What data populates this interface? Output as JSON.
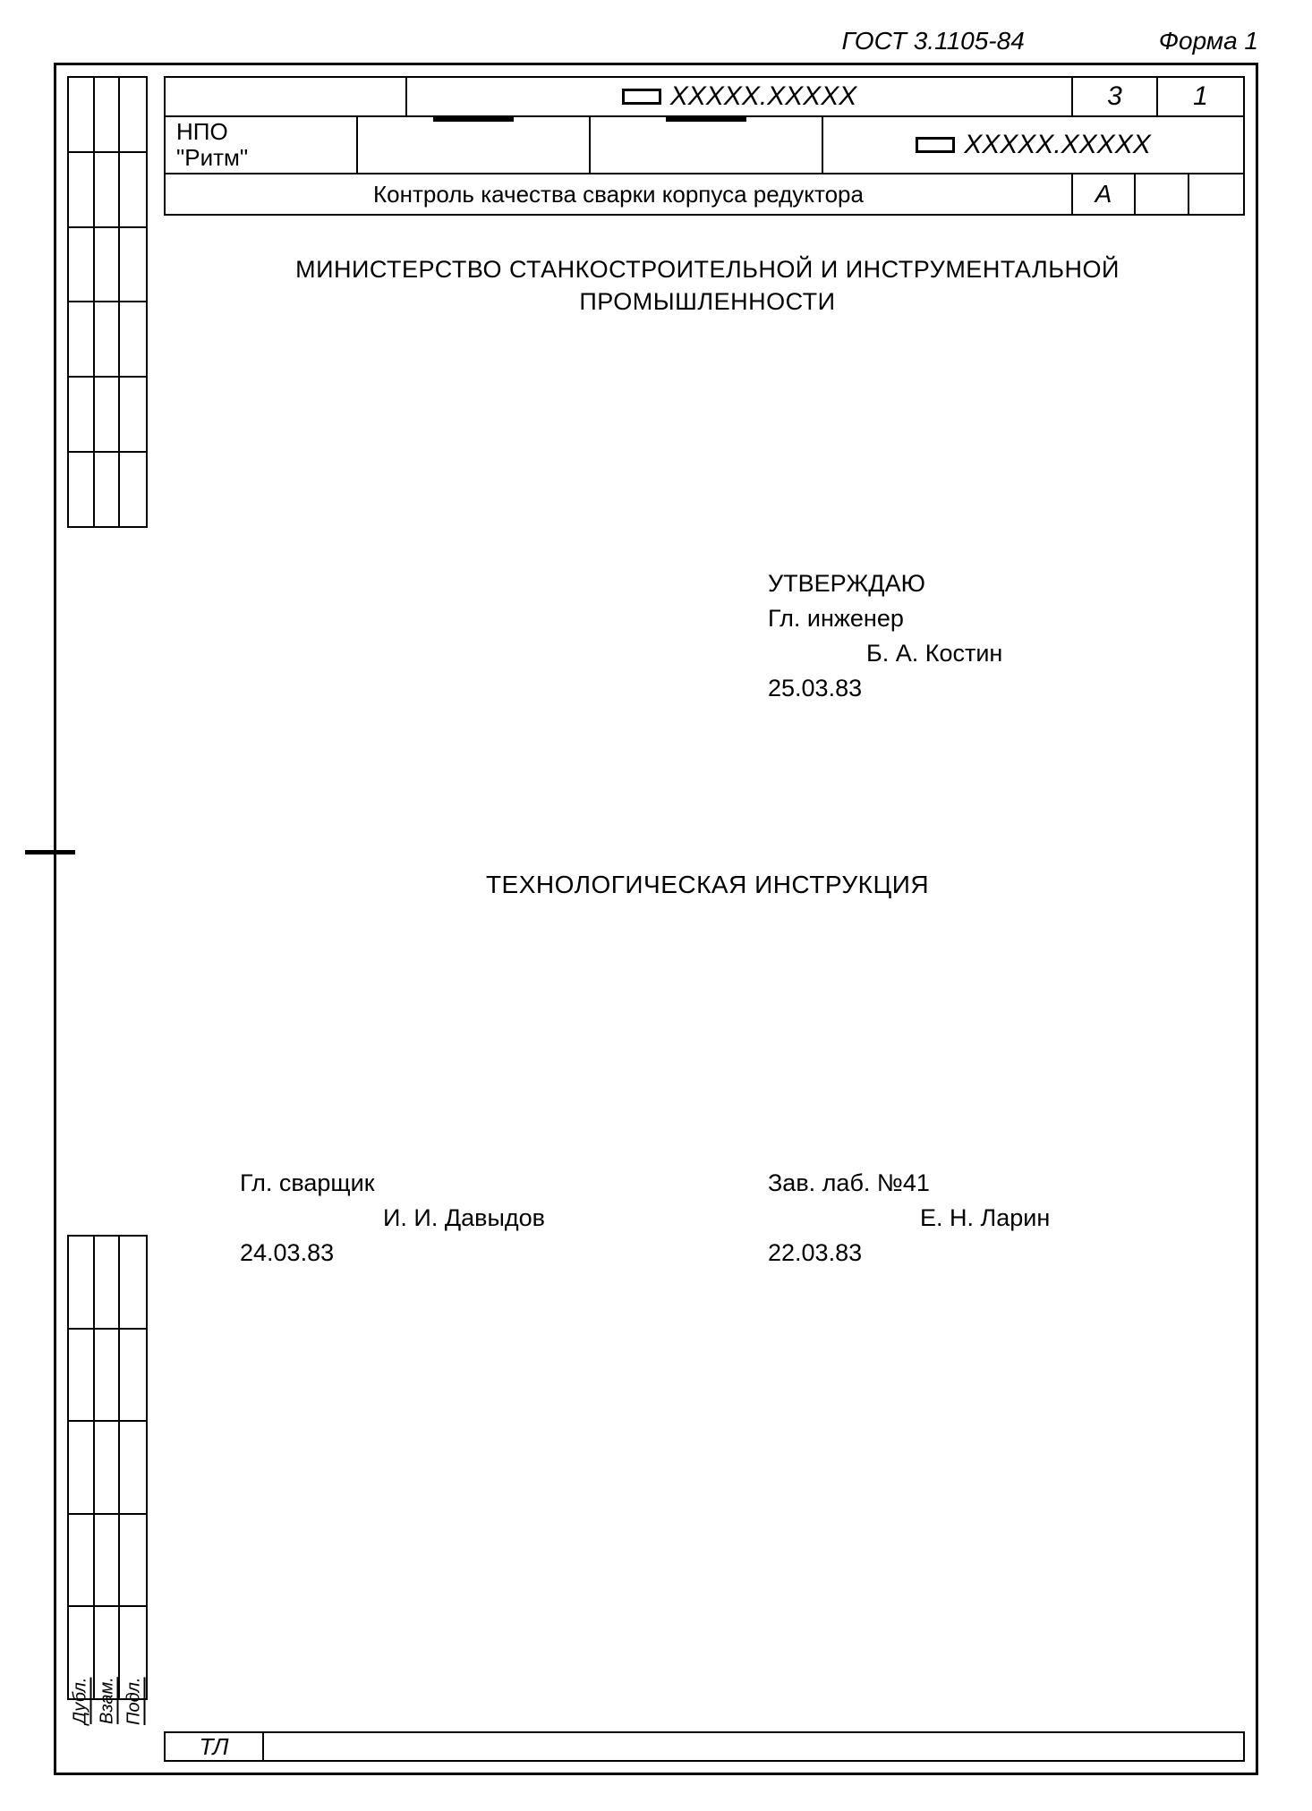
{
  "header": {
    "gost": "ГОСТ 3.1105-84",
    "forma": "Форма 1"
  },
  "title_block": {
    "row1": {
      "code": "ХХХХХ.ХХХХХ",
      "col3": "3",
      "col4": "1"
    },
    "row2": {
      "org_line1": "НПО",
      "org_line2": "\"Ритм\"",
      "code": "ХХХХХ.ХХХХХ"
    },
    "row3": {
      "title": "Контроль качества сварки корпуса редуктора",
      "letter": "А"
    }
  },
  "content": {
    "ministry_line1": "МИНИСТЕРСТВО СТАНКОСТРОИТЕЛЬНОЙ И ИНСТРУМЕНТАЛЬНОЙ",
    "ministry_line2": "ПРОМЫШЛЕННОСТИ",
    "approve": {
      "heading": "УТВЕРЖДАЮ",
      "role": "Гл. инженер",
      "name": "Б. А. Костин",
      "date": "25.03.83"
    },
    "doc_title": "ТЕХНОЛОГИЧЕСКАЯ ИНСТРУКЦИЯ",
    "sign_left": {
      "role": "Гл. сварщик",
      "name": "И. И. Давыдов",
      "date": "24.03.83"
    },
    "sign_right": {
      "role": "Зав. лаб. №41",
      "name": "Е. Н. Ларин",
      "date": "22.03.83"
    }
  },
  "side_labels": {
    "l1": "Дубл.",
    "l2": "Взам.",
    "l3": "Подл."
  },
  "bottom": {
    "tl": "ТЛ"
  }
}
